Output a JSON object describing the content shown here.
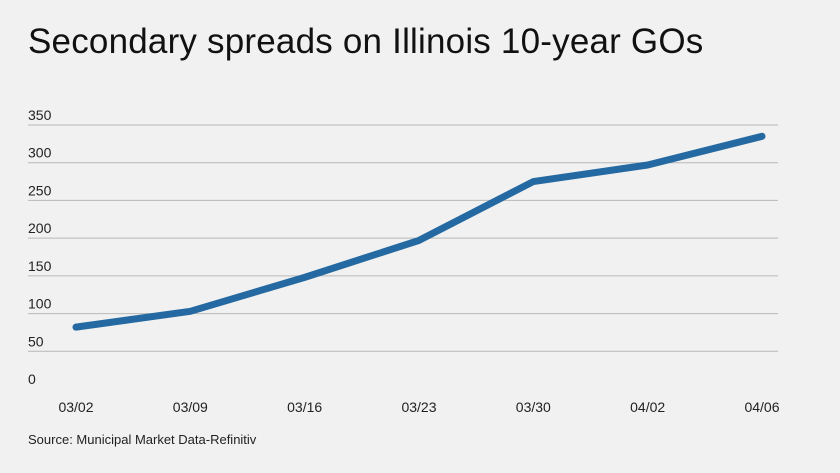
{
  "title": "Secondary spreads on Illinois 10-year GOs",
  "source": "Source: Municipal Market Data-Refinitiv",
  "chart_data": {
    "type": "line",
    "title": "Secondary spreads on Illinois 10-year GOs",
    "xlabel": "",
    "ylabel": "",
    "categories": [
      "03/02",
      "03/09",
      "03/16",
      "03/23",
      "03/30",
      "04/02",
      "04/06"
    ],
    "series": [
      {
        "values": [
          82,
          103,
          148,
          197,
          275,
          297,
          335
        ]
      }
    ],
    "ylim": [
      0,
      350
    ],
    "yticks": [
      0,
      50,
      100,
      150,
      200,
      250,
      300,
      350
    ],
    "grid": true,
    "legend": "none",
    "line_color": "#2569a2",
    "grid_color": "#b8b8b8"
  }
}
